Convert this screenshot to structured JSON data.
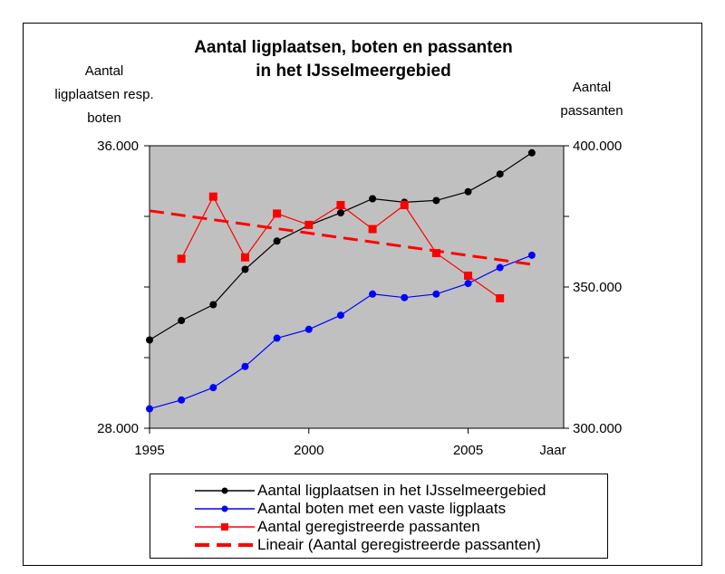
{
  "chart_data": {
    "type": "line",
    "title_line1": "Aantal ligplaatsen, boten en passanten",
    "title_line2": "in het IJsselmeergebied",
    "ylabel_left": [
      "Aantal",
      "ligplaatsen resp.",
      "boten"
    ],
    "ylabel_right": [
      "Aantal",
      "passanten"
    ],
    "xlabel": "Jaar",
    "xlim": [
      1995,
      2008
    ],
    "ylim_left": [
      28000,
      36000
    ],
    "ylim_right": [
      300000,
      400000
    ],
    "x_ticks": [
      "1995",
      "2000",
      "2005"
    ],
    "y_left_ticks": [
      "36.000",
      "28.000"
    ],
    "y_right_ticks": [
      "400.000",
      "350.000",
      "300.000"
    ],
    "plot_background": "#c0c0c0",
    "series": [
      {
        "name": "Aantal ligplaatsen in het IJsselmeergebied",
        "axis": "left",
        "color": "#000000",
        "marker": "circle",
        "x": [
          1995,
          1996,
          1997,
          1998,
          1999,
          2000,
          2001,
          2002,
          2003,
          2004,
          2005,
          2006,
          2007
        ],
        "y": [
          30500,
          31050,
          31500,
          32500,
          33300,
          33750,
          34100,
          34500,
          34400,
          34450,
          34700,
          35200,
          35800
        ]
      },
      {
        "name": "Aantal boten met een vaste ligplaats",
        "axis": "left",
        "color": "#0000ff",
        "marker": "circle",
        "x": [
          1995,
          1996,
          1997,
          1998,
          1999,
          2000,
          2001,
          2002,
          2003,
          2004,
          2005,
          2006,
          2007
        ],
        "y": [
          28550,
          28800,
          29150,
          29750,
          30550,
          30800,
          31200,
          31800,
          31700,
          31800,
          32100,
          32550,
          32900
        ]
      },
      {
        "name": "Aantal geregistreerde passanten",
        "axis": "right",
        "color": "#ff0000",
        "marker": "square",
        "x": [
          1996,
          1997,
          1998,
          1999,
          2000,
          2001,
          2002,
          2003,
          2004,
          2005,
          2006
        ],
        "y": [
          360000,
          382000,
          360500,
          376000,
          372000,
          379000,
          370500,
          379000,
          362000,
          354000,
          346000
        ]
      },
      {
        "name": "Lineair (Aantal geregistreerde passanten)",
        "axis": "right",
        "color": "#ff0000",
        "style": "dashed",
        "x": [
          1995,
          2007
        ],
        "y": [
          377000,
          358000
        ]
      }
    ],
    "legend_position": "bottom"
  }
}
